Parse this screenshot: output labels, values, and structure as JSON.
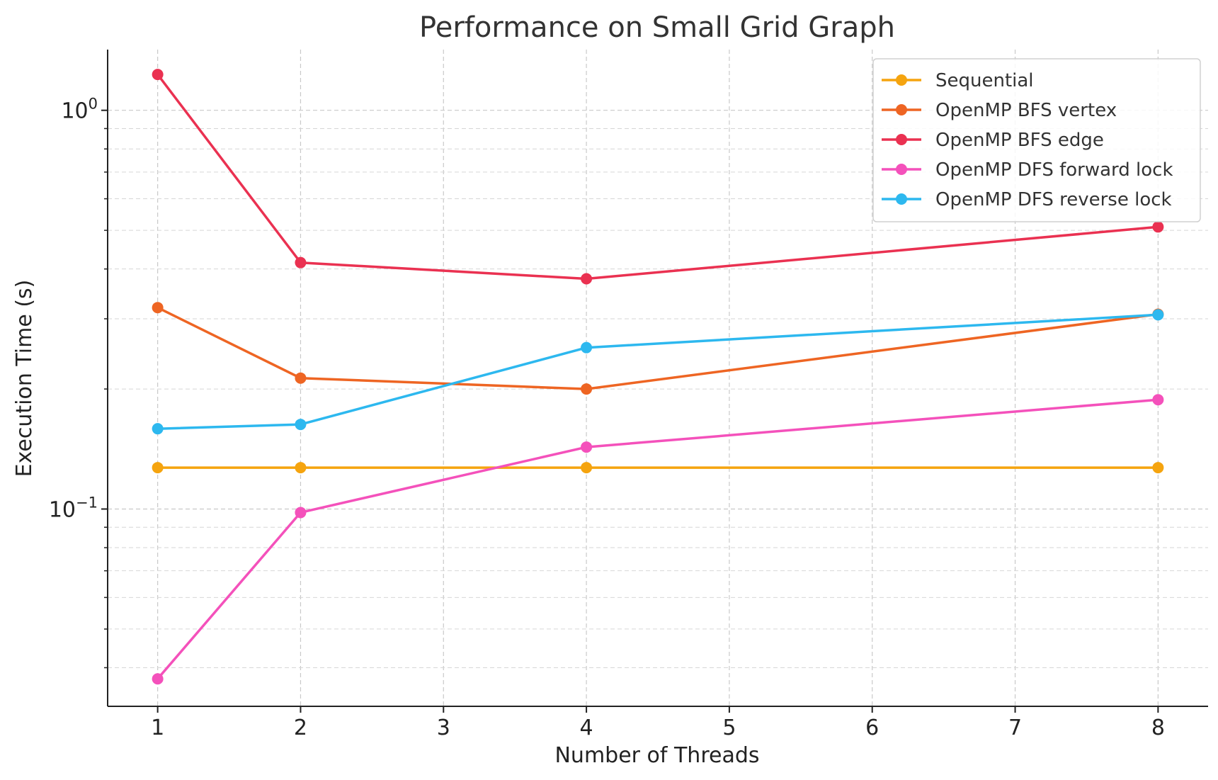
{
  "chart_data": {
    "type": "line",
    "title": "Performance on Small Grid Graph",
    "xlabel": "Number of Threads",
    "ylabel": "Execution Time (s)",
    "yscale": "log",
    "xlim": [
      0.65,
      8.35
    ],
    "ylim": [
      0.032,
      1.42
    ],
    "x_ticks": [
      1,
      2,
      3,
      4,
      5,
      6,
      7,
      8
    ],
    "y_ticks": [
      {
        "value": 1,
        "base": "10",
        "exp": "0"
      },
      {
        "value": 0.1,
        "base": "10",
        "exp": "−1"
      }
    ],
    "grid": true,
    "legend_position": "top-right",
    "x": [
      1,
      2,
      4,
      8
    ],
    "series": [
      {
        "name": "Sequential",
        "color": "#f5a40f",
        "values": [
          0.127,
          0.127,
          0.127,
          0.127
        ]
      },
      {
        "name": "OpenMP BFS vertex",
        "color": "#ee6523",
        "values": [
          0.32,
          0.213,
          0.2,
          0.308
        ]
      },
      {
        "name": "OpenMP BFS edge",
        "color": "#ea3151",
        "values": [
          1.23,
          0.415,
          0.378,
          0.51
        ]
      },
      {
        "name": "OpenMP DFS forward lock",
        "color": "#f451bb",
        "values": [
          0.0375,
          0.098,
          0.143,
          0.188
        ]
      },
      {
        "name": "OpenMP DFS reverse lock",
        "color": "#2db8ef",
        "values": [
          0.159,
          0.163,
          0.254,
          0.307
        ]
      }
    ]
  }
}
